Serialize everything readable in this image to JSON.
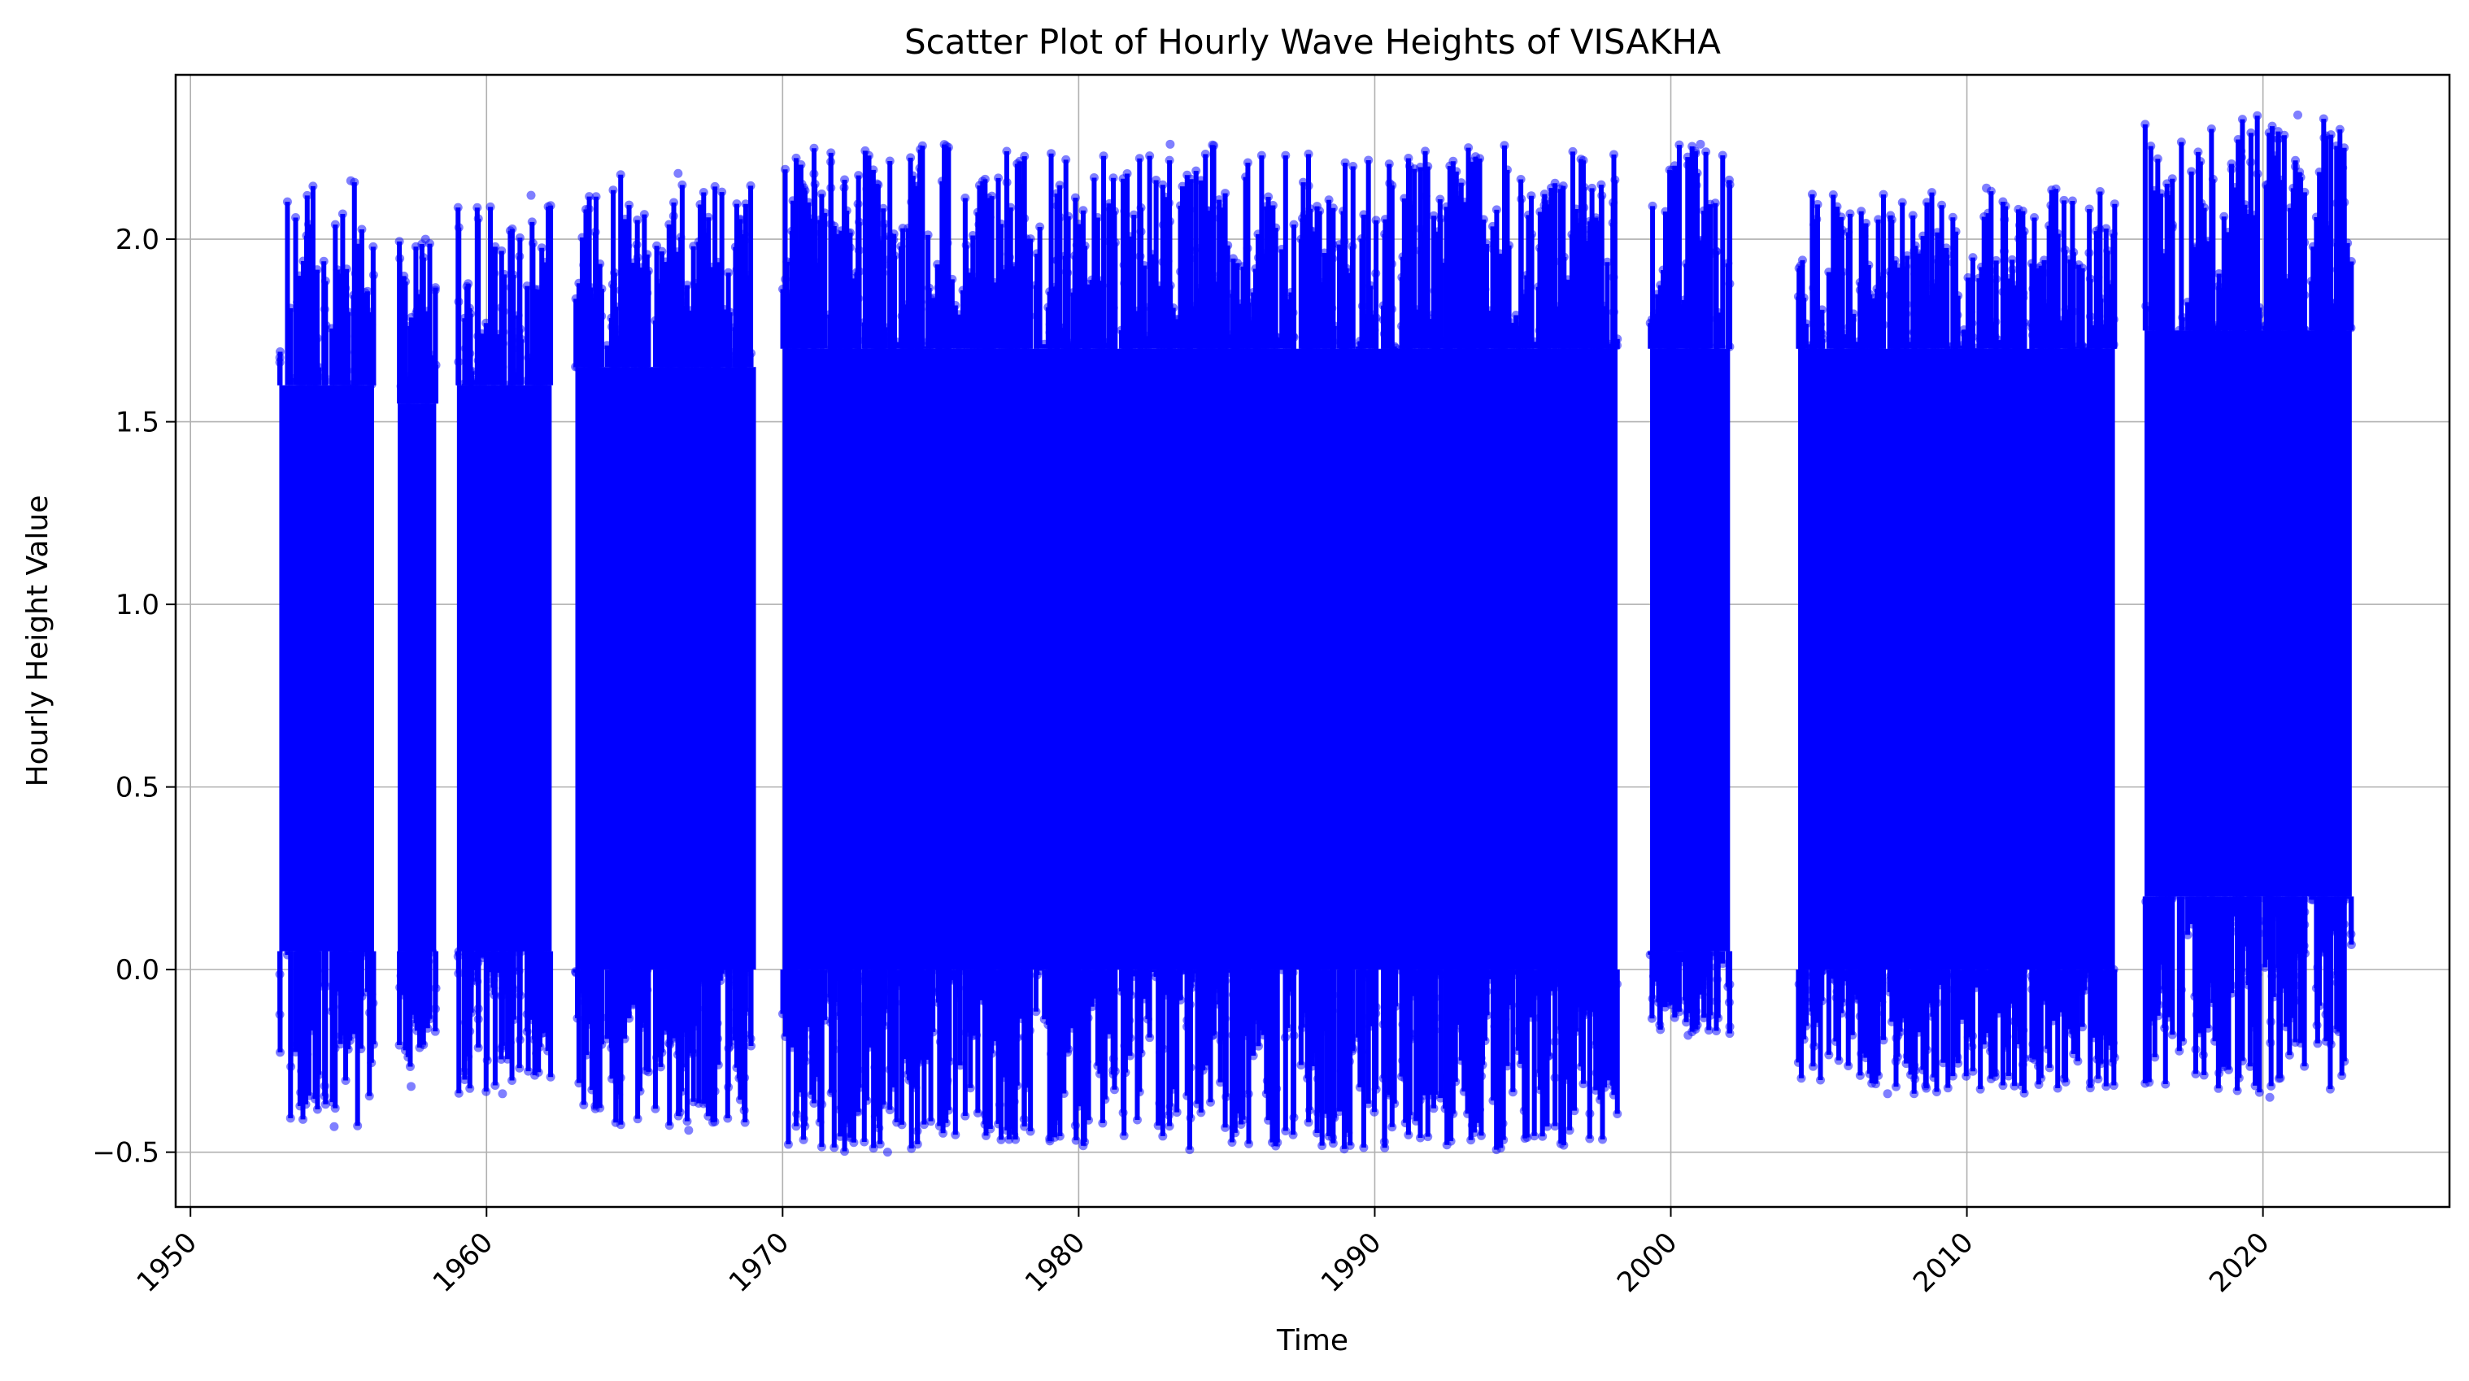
{
  "chart_data": {
    "type": "scatter",
    "title": "Scatter Plot of Hourly Wave Heights of VISAKHA",
    "xlabel": "Time",
    "ylabel": "Hourly Height Value",
    "xlim": [
      1949.5,
      2026.3
    ],
    "ylim": [
      -0.65,
      2.45
    ],
    "x_ticks": [
      1950,
      1960,
      1970,
      1980,
      1990,
      2000,
      2010,
      2020
    ],
    "x_tick_labels": [
      "1950",
      "1960",
      "1970",
      "1980",
      "1990",
      "2000",
      "2010",
      "2020"
    ],
    "y_ticks": [
      -0.5,
      0.0,
      0.5,
      1.0,
      1.5,
      2.0
    ],
    "y_tick_labels": [
      "−0.5",
      "0.0",
      "0.5",
      "1.0",
      "1.5",
      "2.0"
    ],
    "grid": true,
    "marker_color": "#0000ff",
    "marker_alpha": 0.5,
    "series": [
      {
        "values_note_free": true,
        "segments": [
          {
            "start": 1953.0,
            "end": 1956.2,
            "dense_low": 0.05,
            "dense_high": 1.6,
            "min": -0.43,
            "max": 2.16
          },
          {
            "start": 1957.0,
            "end": 1958.3,
            "dense_low": 0.05,
            "dense_high": 1.55,
            "min": -0.32,
            "max": 2.0
          },
          {
            "start": 1959.0,
            "end": 1962.2,
            "dense_low": 0.05,
            "dense_high": 1.6,
            "min": -0.34,
            "max": 2.12
          },
          {
            "start": 1963.0,
            "end": 1969.1,
            "dense_low": 0.0,
            "dense_high": 1.65,
            "min": -0.44,
            "max": 2.18
          },
          {
            "start": 1970.0,
            "end": 1998.2,
            "dense_low": 0.0,
            "dense_high": 1.7,
            "min": -0.5,
            "max": 2.26
          },
          {
            "start": 1999.3,
            "end": 2002.0,
            "dense_low": 0.05,
            "dense_high": 1.7,
            "min": -0.18,
            "max": 2.26
          },
          {
            "start": 2004.3,
            "end": 2015.0,
            "dense_low": 0.0,
            "dense_high": 1.7,
            "min": -0.34,
            "max": 2.14
          },
          {
            "start": 2016.0,
            "end": 2023.0,
            "dense_low": 0.2,
            "dense_high": 1.75,
            "min": -0.35,
            "max": 2.34
          }
        ]
      }
    ]
  }
}
